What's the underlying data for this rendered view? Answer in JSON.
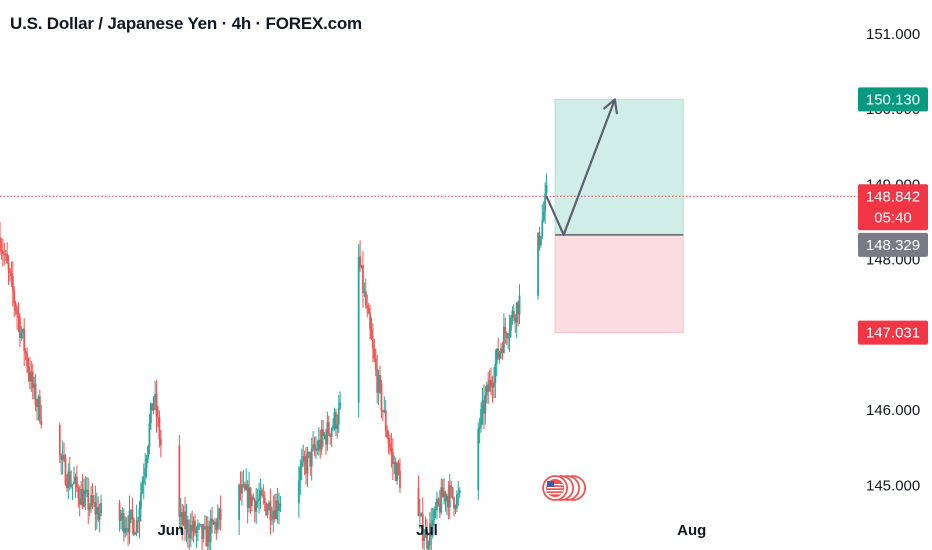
{
  "header": {
    "title": "U.S. Dollar / Japanese Yen · 4h · FOREX.com"
  },
  "colors": {
    "up": "#26a69a",
    "down": "#ef5350",
    "target_zone": "#d1ede8",
    "stop_zone": "#fcdde0",
    "target_badge": "#089981",
    "price_badge": "#f23645",
    "entry_badge": "#787b86",
    "arrow": "#5d606b",
    "flag": "#ef5350"
  },
  "chart_data": {
    "type": "candlestick",
    "symbol": "U.S. Dollar / Japanese Yen",
    "interval": "4h",
    "source": "FOREX.com",
    "ylim": [
      144.7,
      151.45
    ],
    "y_ticks": [
      "145.000",
      "146.000",
      "148.000",
      "149.000",
      "150.000",
      "151.000"
    ],
    "y_tick_values": [
      145.0,
      146.0,
      148.0,
      149.0,
      150.0,
      151.0
    ],
    "x_ticks": [
      "Jun",
      "Jul",
      "Aug"
    ],
    "x_tick_dates": [
      "2025-06-01",
      "2025-07-01",
      "2025-08-01"
    ],
    "x_range": [
      "2025-05-12",
      "2025-08-20"
    ],
    "current_price": {
      "value": "148.842",
      "countdown": "05:40"
    },
    "position": {
      "type": "long",
      "start": "2025-07-16",
      "end": "2025-07-31",
      "target": "150.130",
      "entry": "148.329",
      "stop": "147.031"
    },
    "projection_path": [
      {
        "date": "2025-07-15",
        "price": 148.84
      },
      {
        "date": "2025-07-17",
        "price": 148.33
      },
      {
        "date": "2025-07-23",
        "price": 150.13
      }
    ],
    "event_marker": {
      "date": "2025-07-16",
      "label": "U.S. economic events"
    },
    "candle_closes": [
      {
        "date": "2025-05-12",
        "close": 148.3
      },
      {
        "date": "2025-05-14",
        "close": 147.3
      },
      {
        "date": "2025-05-16",
        "close": 146.2
      },
      {
        "date": "2025-05-18",
        "close": 145.6
      },
      {
        "date": "2025-05-20",
        "close": 145.1
      },
      {
        "date": "2025-05-22",
        "close": 144.8
      },
      {
        "date": "2025-05-24",
        "close": 144.6
      },
      {
        "date": "2025-05-28",
        "close": 144.5
      },
      {
        "date": "2025-05-30",
        "close": 146.2
      },
      {
        "date": "2025-06-01",
        "close": 144.6
      },
      {
        "date": "2025-06-05",
        "close": 144.3
      },
      {
        "date": "2025-06-09",
        "close": 144.9
      },
      {
        "date": "2025-06-13",
        "close": 144.7
      },
      {
        "date": "2025-06-17",
        "close": 145.3
      },
      {
        "date": "2025-06-21",
        "close": 146.0
      },
      {
        "date": "2025-06-23",
        "close": 148.0
      },
      {
        "date": "2025-06-25",
        "close": 146.5
      },
      {
        "date": "2025-06-27",
        "close": 145.3
      },
      {
        "date": "2025-06-29",
        "close": 144.8
      },
      {
        "date": "2025-07-01",
        "close": 144.3
      },
      {
        "date": "2025-07-03",
        "close": 144.9
      },
      {
        "date": "2025-07-05",
        "close": 144.8
      },
      {
        "date": "2025-07-08",
        "close": 146.2
      },
      {
        "date": "2025-07-10",
        "close": 147.0
      },
      {
        "date": "2025-07-12",
        "close": 147.5
      },
      {
        "date": "2025-07-14",
        "close": 148.2
      },
      {
        "date": "2025-07-15",
        "close": 148.84
      }
    ]
  }
}
